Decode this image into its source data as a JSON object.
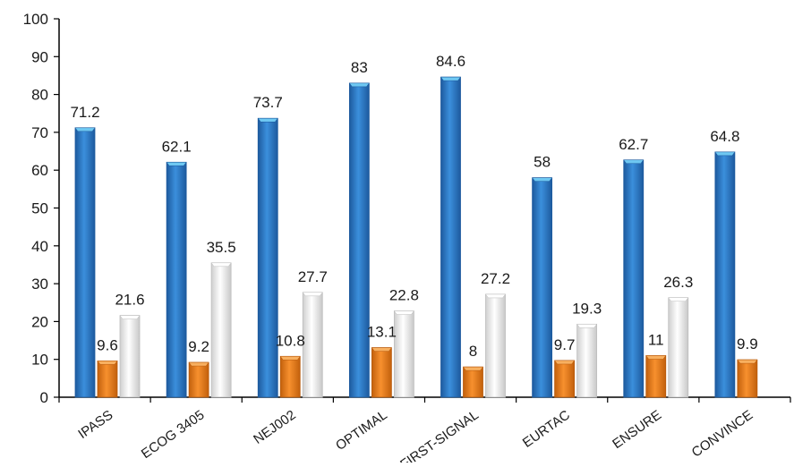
{
  "chart_data": {
    "type": "bar",
    "title": "",
    "xlabel": "",
    "ylabel": "",
    "ylim": [
      0,
      100
    ],
    "yticks": [
      0,
      10,
      20,
      30,
      40,
      50,
      60,
      70,
      80,
      90,
      100
    ],
    "categories": [
      "IPASS",
      "ECOG 3405",
      "NEJ002",
      "OPTIMAL",
      "FIRST-SIGNAL",
      "EURTAC",
      "ENSURE",
      "CONVINCE"
    ],
    "series": [
      {
        "values": [
          71.2,
          62.1,
          73.7,
          83,
          84.6,
          58,
          62.7,
          64.8
        ]
      },
      {
        "values": [
          9.6,
          9.2,
          10.8,
          13.1,
          8,
          9.7,
          11,
          9.9
        ]
      },
      {
        "values": [
          21.6,
          35.5,
          27.7,
          22.8,
          27.2,
          19.3,
          26.3,
          null
        ]
      }
    ],
    "grid": false,
    "legend": "none"
  },
  "colors": {
    "series_fill": [
      "#2e78c8",
      "#ee7a1a",
      "#f2f2f2"
    ],
    "series_top": [
      "#6ec8f2",
      "#f8b060",
      "#ffffff"
    ],
    "series_edge": [
      "#1d5a9e",
      "#b85a0c",
      "#bdbdbd"
    ],
    "axis": "#000000"
  }
}
